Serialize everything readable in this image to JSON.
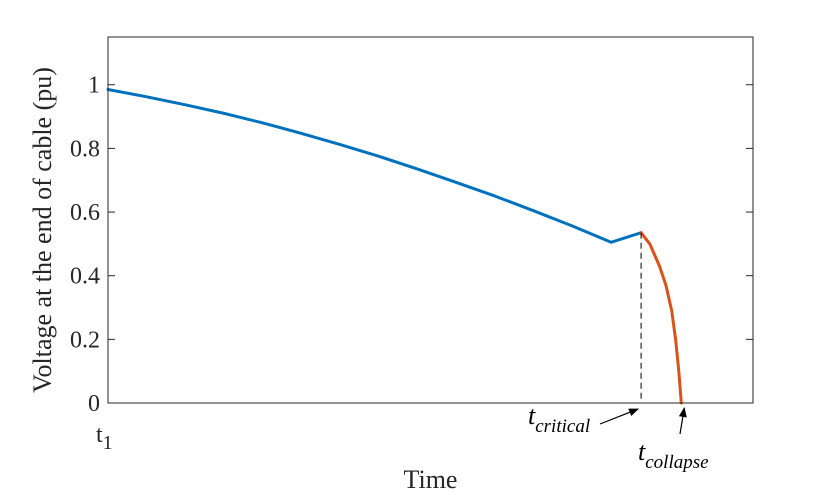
{
  "chart_data": {
    "type": "line",
    "title": "",
    "xlabel": "Time",
    "ylabel": "Voltage at the end of cable (pu)",
    "ylim": [
      0,
      1.15
    ],
    "y_ticks": [
      {
        "value": 0,
        "label": "0"
      },
      {
        "value": 0.2,
        "label": "0.2"
      },
      {
        "value": 0.4,
        "label": "0.4"
      },
      {
        "value": 0.6,
        "label": "0.6"
      },
      {
        "value": 0.8,
        "label": "0.8"
      },
      {
        "value": 1,
        "label": "1"
      }
    ],
    "x_ticks": [
      {
        "value": 0,
        "label": "t",
        "subscript": "1"
      }
    ],
    "grid": false,
    "box": true,
    "series": [
      {
        "color": "#0072bd",
        "x": [
          0.0,
          0.06,
          0.12,
          0.18,
          0.24,
          0.3,
          0.36,
          0.42,
          0.48,
          0.54,
          0.6,
          0.66,
          0.72,
          0.78,
          0.8265
        ],
        "y": [
          0.985,
          0.962,
          0.937,
          0.91,
          0.88,
          0.847,
          0.812,
          0.775,
          0.735,
          0.693,
          0.65,
          0.604,
          0.556,
          0.505,
          0.535
        ]
      },
      {
        "color": "#d95319",
        "x": [
          0.8265,
          0.84,
          0.855,
          0.865,
          0.874,
          0.88,
          0.885,
          0.8888
        ],
        "y": [
          0.535,
          0.5,
          0.43,
          0.37,
          0.29,
          0.2,
          0.1,
          0.0
        ]
      }
    ],
    "markers": [
      {
        "type": "vline",
        "x": 0.8265,
        "from": 0,
        "to": 0.535,
        "style": "dashed",
        "color": "#000000"
      }
    ],
    "annotations": [
      {
        "text": "t",
        "subscript": "critical",
        "points_to": [
          0.8265,
          0
        ]
      },
      {
        "text": "t",
        "subscript": "collapse",
        "points_to": [
          0.8888,
          0
        ]
      }
    ]
  }
}
